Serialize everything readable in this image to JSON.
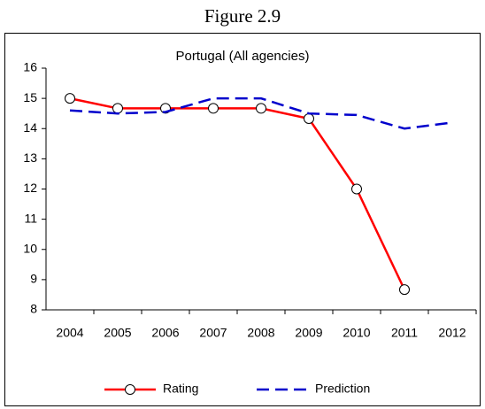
{
  "figure_title": "Figure 2.9",
  "chart_data": {
    "type": "line",
    "title": "Portugal (All agencies)",
    "categories": [
      "2004",
      "2005",
      "2006",
      "2007",
      "2008",
      "2009",
      "2010",
      "2011",
      "2012"
    ],
    "series": [
      {
        "name": "Rating",
        "color": "#ff0000",
        "dashed": false,
        "marker": true,
        "values": [
          15,
          14.67,
          14.67,
          14.67,
          14.67,
          14.33,
          12,
          8.67,
          null
        ]
      },
      {
        "name": "Prediction",
        "color": "#0000cc",
        "dashed": true,
        "marker": false,
        "values": [
          14.6,
          14.5,
          14.55,
          15,
          15,
          14.5,
          14.45,
          14,
          14.2
        ]
      }
    ],
    "ylim": [
      8,
      16
    ],
    "yticks": [
      8,
      9,
      10,
      11,
      12,
      13,
      14,
      15,
      16
    ],
    "grid": false,
    "legend": "bottom"
  }
}
